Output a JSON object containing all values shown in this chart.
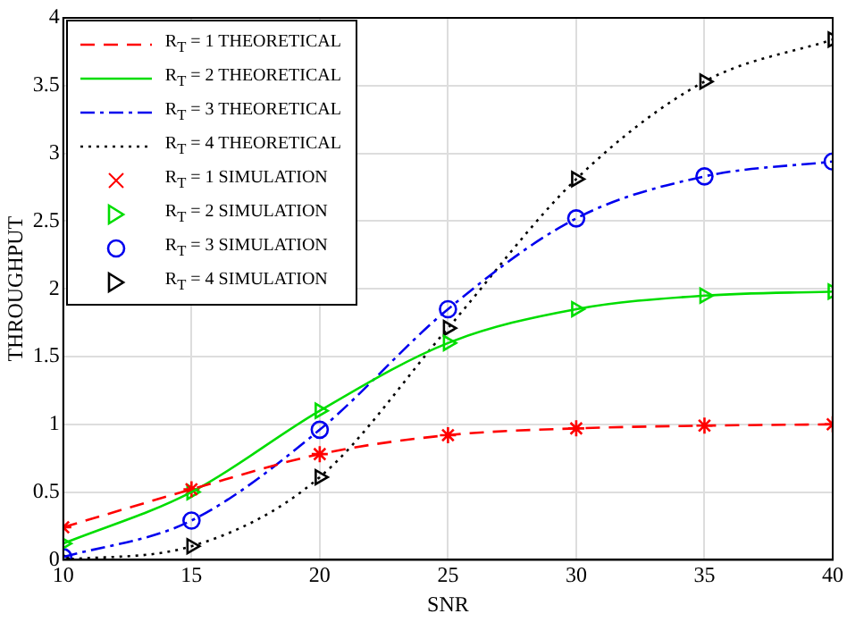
{
  "chart_data": {
    "type": "line",
    "xlabel": "SNR",
    "ylabel": "THROUGHPUT",
    "x": [
      10,
      15,
      20,
      25,
      30,
      35,
      40
    ],
    "xlim": [
      10,
      40
    ],
    "xticks": [
      10,
      15,
      20,
      25,
      30,
      35,
      40
    ],
    "ylim": [
      0,
      4
    ],
    "yticks": [
      0,
      0.5,
      1,
      1.5,
      2,
      2.5,
      3,
      3.5,
      4
    ],
    "grid": true,
    "legend": "top left",
    "series": [
      {
        "name": "R$_{T}$ = 1 THEORETICAL",
        "type": "line",
        "color": "#ff0000",
        "line_style": "dashed",
        "marker": "none",
        "values": [
          0.24,
          0.52,
          0.78,
          0.92,
          0.97,
          0.99,
          1.0
        ]
      },
      {
        "name": "R$_{T}$ = 2 THEORETICAL",
        "type": "line",
        "color": "#00dd00",
        "line_style": "solid",
        "marker": "none",
        "values": [
          0.12,
          0.5,
          1.1,
          1.6,
          1.85,
          1.95,
          1.98
        ]
      },
      {
        "name": "R$_{T}$ = 3 THEORETICAL",
        "type": "line",
        "color": "#0000ee",
        "line_style": "dashdot",
        "marker": "none",
        "values": [
          0.02,
          0.29,
          0.96,
          1.85,
          2.52,
          2.83,
          2.94
        ]
      },
      {
        "name": "R$_{T}$ = 4 THEORETICAL",
        "type": "line",
        "color": "#000000",
        "line_style": "dotted",
        "marker": "none",
        "values": [
          0.0,
          0.1,
          0.61,
          1.71,
          2.81,
          3.53,
          3.84
        ]
      },
      {
        "name": "R$_{T}$ = 1 SIMULATION",
        "type": "scatter",
        "color": "#ff0000",
        "marker": "cross",
        "values": [
          0.24,
          0.52,
          0.78,
          0.92,
          0.97,
          0.99,
          1.0
        ]
      },
      {
        "name": "R$_{T}$ = 2 SIMULATION",
        "type": "scatter",
        "color": "#00dd00",
        "marker": "triangle",
        "values": [
          0.12,
          0.5,
          1.1,
          1.6,
          1.85,
          1.95,
          1.98
        ]
      },
      {
        "name": "R$_{T}$ = 3 SIMULATION",
        "type": "scatter",
        "color": "#0000ee",
        "marker": "circle",
        "values": [
          0.02,
          0.29,
          0.96,
          1.85,
          2.52,
          2.83,
          2.94
        ]
      },
      {
        "name": "R$_{T}$ = 4 SIMULATION",
        "type": "scatter",
        "color": "#000000",
        "marker": "triangle",
        "values": [
          0.0,
          0.1,
          0.61,
          1.71,
          2.81,
          3.53,
          3.84
        ]
      }
    ]
  }
}
